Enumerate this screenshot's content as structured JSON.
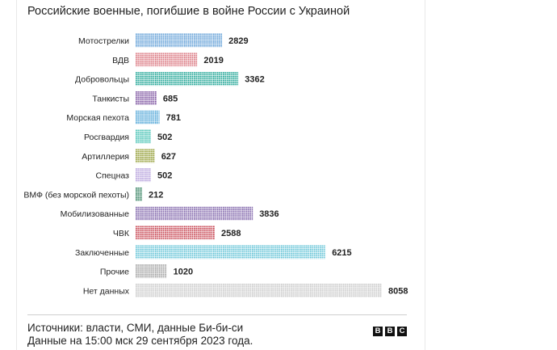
{
  "title": "Российские военные, погибшие в войне России с Украиной",
  "footer": {
    "sources": "Источники: власти, СМИ, данные Би-би-си",
    "date": "Данные на 15:00 мск 29 сентября 2023 года.",
    "logo_letters": [
      "B",
      "B",
      "C"
    ]
  },
  "chart_data": {
    "type": "bar",
    "orientation": "horizontal",
    "style": "dot-matrix",
    "title": "Российские военные, погибшие в войне России с Украиной",
    "categories": [
      "Мотострелки",
      "ВДВ",
      "Добровольцы",
      "Танкисты",
      "Морская пехота",
      "Росгвардия",
      "Артиллерия",
      "Спецназ",
      "ВМФ (без морской пехоты)",
      "Мобилизованные",
      "ЧВК",
      "Заключенные",
      "Прочие",
      "Нет данных"
    ],
    "values": [
      2829,
      2019,
      3362,
      685,
      781,
      502,
      627,
      502,
      212,
      3836,
      2588,
      6215,
      1020,
      8058
    ],
    "colors": [
      "#5b9bd5",
      "#d9707a",
      "#1aa393",
      "#7a4f9e",
      "#4aa3d6",
      "#3cbfb0",
      "#8f9a2e",
      "#b39ddb",
      "#2e7d5b",
      "#7b5ea7",
      "#c6424f",
      "#62c3d6",
      "#a0a0a0",
      "#c8c8c8"
    ],
    "xlim": [
      0,
      8058
    ],
    "grid": false,
    "legend": "none",
    "data_labels": true
  }
}
